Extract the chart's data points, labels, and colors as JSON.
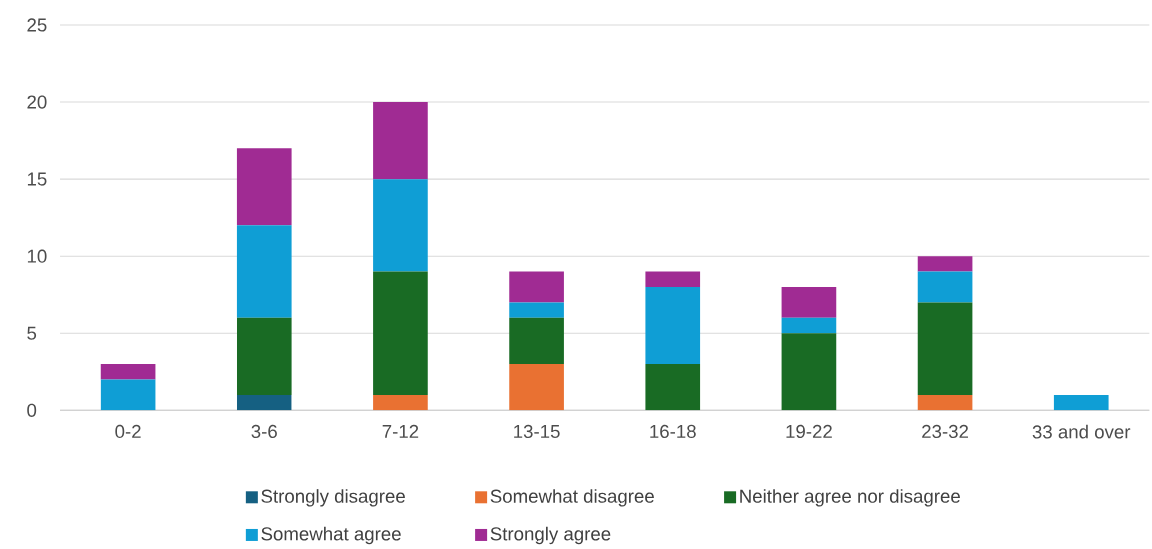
{
  "chart_data": {
    "type": "bar",
    "stacked": true,
    "categories": [
      "0-2",
      "3-6",
      "7-12",
      "13-15",
      "16-18",
      "19-22",
      "23-32",
      "33 and over"
    ],
    "series": [
      {
        "name": "Strongly disagree",
        "color": "#156082",
        "values": [
          0,
          1,
          0,
          0,
          0,
          0,
          0,
          0
        ]
      },
      {
        "name": "Somewhat disagree",
        "color": "#e97132",
        "values": [
          0,
          0,
          1,
          3,
          0,
          0,
          1,
          0
        ]
      },
      {
        "name": "Neither agree nor disagree",
        "color": "#196b24",
        "values": [
          0,
          5,
          8,
          3,
          3,
          5,
          6,
          0
        ]
      },
      {
        "name": "Somewhat agree",
        "color": "#0f9ed5",
        "values": [
          2,
          6,
          6,
          1,
          5,
          1,
          2,
          1
        ]
      },
      {
        "name": "Strongly agree",
        "color": "#a02b93",
        "values": [
          1,
          5,
          5,
          2,
          1,
          2,
          1,
          0
        ]
      }
    ],
    "ylim": [
      0,
      25
    ],
    "yticks": [
      0,
      5,
      10,
      15,
      20,
      25
    ],
    "grid": "y",
    "legend": "bottom"
  }
}
